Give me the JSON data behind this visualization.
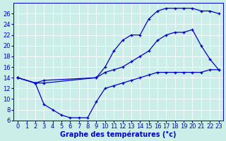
{
  "xlabel": "Graphe des températures (°c)",
  "background_color": "#cceee8",
  "line_color": "#0000cc",
  "ylim": [
    6,
    28
  ],
  "xlim": [
    -0.5,
    23.5
  ],
  "yticks": [
    6,
    8,
    10,
    12,
    14,
    16,
    18,
    20,
    22,
    24,
    26
  ],
  "xticks": [
    0,
    1,
    2,
    3,
    4,
    5,
    6,
    7,
    8,
    9,
    10,
    11,
    12,
    13,
    14,
    15,
    16,
    17,
    18,
    19,
    20,
    21,
    22,
    23
  ],
  "line_top_x": [
    0,
    2,
    3,
    9,
    10,
    11,
    12,
    13,
    14,
    15,
    16,
    17,
    18,
    19,
    20,
    21,
    22,
    23
  ],
  "line_top_y": [
    14,
    13,
    13,
    14,
    16,
    19,
    21,
    22,
    22,
    25,
    26.5,
    27,
    27,
    27,
    27,
    26.5,
    26.5,
    26
  ],
  "line_mid_x": [
    0,
    2,
    3,
    9,
    10,
    11,
    12,
    13,
    14,
    15,
    16,
    17,
    18,
    19,
    20,
    21,
    22,
    23
  ],
  "line_mid_y": [
    14,
    13,
    13.5,
    14,
    15,
    15.5,
    16,
    17,
    18,
    19,
    21,
    22,
    22.5,
    22.5,
    23,
    20,
    17.5,
    15.5
  ],
  "line_bot_x": [
    0,
    2,
    3,
    4,
    5,
    6,
    7,
    8,
    9,
    10,
    11,
    12,
    13,
    14,
    15,
    16,
    17,
    18,
    19,
    20,
    21,
    22,
    23
  ],
  "line_bot_y": [
    14,
    13,
    9,
    8,
    7,
    6.5,
    6.5,
    6.5,
    9.5,
    12,
    12.5,
    13,
    13.5,
    14,
    14.5,
    15,
    15,
    15,
    15,
    15,
    15,
    15.5,
    15.5
  ],
  "xlabel_fontsize": 7,
  "tick_fontsize": 6
}
